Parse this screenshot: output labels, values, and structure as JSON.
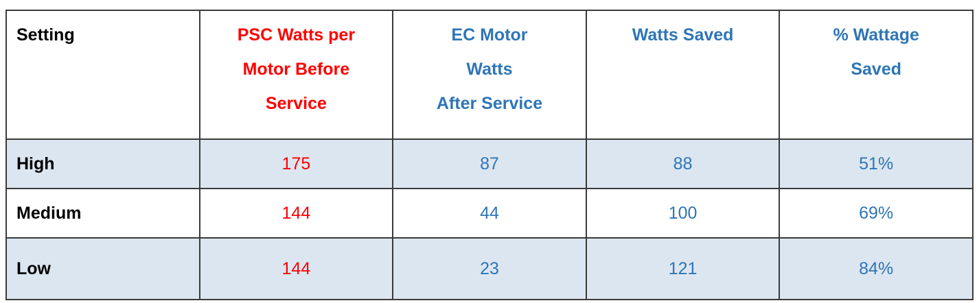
{
  "table": {
    "header": [
      [
        "Setting"
      ],
      [
        "PSC Watts per",
        "Motor Before",
        "Service"
      ],
      [
        "EC Motor",
        "Watts",
        "After Service"
      ],
      [
        "Watts Saved"
      ],
      [
        "% Wattage",
        "Saved"
      ]
    ],
    "rows": [
      [
        "High",
        175,
        87,
        88,
        "51%"
      ],
      [
        "Medium",
        144,
        44,
        100,
        "69%"
      ],
      [
        "Low",
        144,
        23,
        121,
        "84%"
      ]
    ]
  }
}
